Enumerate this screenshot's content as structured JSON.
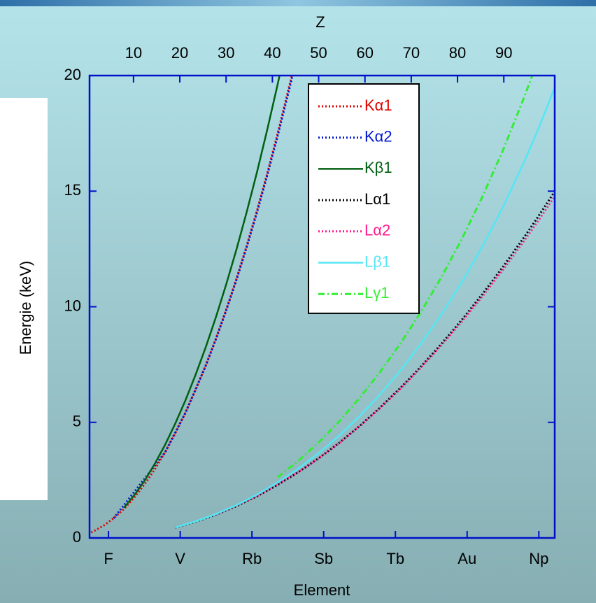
{
  "chart_data": {
    "type": "line",
    "x_label": "Element",
    "y_label": "Energie (keV)",
    "x2_label": "Z",
    "xlim": [
      5.3,
      96.1
    ],
    "xticks": [
      {
        "value": 9,
        "label": "F"
      },
      {
        "value": 23,
        "label": "V"
      },
      {
        "value": 37,
        "label": "Rb"
      },
      {
        "value": 51,
        "label": "Sb"
      },
      {
        "value": 65,
        "label": "Tb"
      },
      {
        "value": 79,
        "label": "Au"
      },
      {
        "value": 93,
        "label": "Np"
      }
    ],
    "x2lim": [
      0.5,
      101
    ],
    "x2ticks": [
      10,
      20,
      30,
      40,
      50,
      60,
      70,
      80,
      90
    ],
    "ylim": [
      0,
      20
    ],
    "yticks": [
      0,
      5,
      10,
      15,
      20
    ],
    "legend": "upper center",
    "series": [
      {
        "name": "Kα1",
        "color": "#e00000",
        "style": "dot",
        "x": [
          5,
          6,
          8,
          10,
          12,
          14,
          16,
          18,
          20,
          22,
          24,
          26,
          28,
          30,
          32,
          34,
          36,
          38,
          40,
          42,
          44,
          45
        ],
        "values": [
          0.183,
          0.277,
          0.525,
          0.849,
          1.254,
          1.74,
          2.308,
          2.957,
          3.692,
          4.511,
          5.415,
          6.404,
          7.478,
          8.639,
          9.886,
          11.222,
          12.649,
          14.165,
          15.775,
          17.479,
          19.279,
          20.216
        ]
      },
      {
        "name": "Kα2",
        "color": "#0018d0",
        "style": "dot",
        "x": [
          10,
          20,
          24,
          28,
          30,
          32,
          34,
          36,
          38,
          40,
          42,
          44,
          45
        ],
        "values": [
          0.849,
          3.688,
          5.405,
          7.461,
          8.616,
          9.855,
          11.181,
          12.598,
          14.098,
          15.691,
          17.374,
          19.15,
          20.074
        ]
      },
      {
        "name": "Kβ1",
        "color": "#006010",
        "style": "solid",
        "x": [
          12,
          14,
          16,
          18,
          20,
          22,
          24,
          26,
          28,
          30,
          32,
          34,
          36,
          38,
          40,
          42,
          43
        ],
        "values": [
          1.302,
          1.836,
          2.464,
          3.191,
          4.013,
          4.932,
          5.947,
          7.058,
          8.265,
          9.572,
          10.982,
          12.496,
          14.112,
          15.836,
          17.668,
          19.608,
          20.619
        ]
      },
      {
        "name": "Lα1",
        "color": "#000000",
        "style": "dot",
        "x": [
          22,
          26,
          30,
          34,
          38,
          42,
          46,
          50,
          54,
          58,
          62,
          66,
          70,
          74,
          78,
          82,
          86,
          90,
          92,
          94,
          96
        ],
        "values": [
          0.452,
          0.705,
          1.012,
          1.379,
          1.806,
          2.293,
          2.839,
          3.444,
          4.11,
          4.84,
          5.636,
          6.495,
          7.416,
          8.398,
          9.442,
          10.551,
          11.727,
          12.968,
          13.615,
          14.279,
          14.961
        ]
      },
      {
        "name": "Lα2",
        "color": "#ff1a8c",
        "style": "dot",
        "x": [
          30,
          38,
          46,
          50,
          54,
          58,
          62,
          66,
          70,
          74,
          78,
          82,
          86,
          90,
          92,
          94,
          96
        ],
        "values": [
          1.012,
          1.806,
          2.833,
          3.435,
          4.097,
          4.823,
          5.609,
          6.457,
          7.367,
          8.335,
          9.362,
          10.45,
          11.595,
          12.809,
          13.438,
          14.082,
          14.745
        ]
      },
      {
        "name": "Lβ1",
        "color": "#55e6f5",
        "style": "solid",
        "x": [
          22,
          26,
          30,
          34,
          38,
          42,
          46,
          50,
          54,
          58,
          62,
          66,
          70,
          74,
          78,
          82,
          86,
          90,
          92,
          94,
          96
        ],
        "values": [
          0.458,
          0.718,
          1.035,
          1.419,
          1.872,
          2.395,
          2.99,
          3.663,
          4.422,
          5.262,
          6.205,
          7.248,
          8.402,
          9.672,
          11.071,
          12.614,
          14.316,
          16.202,
          17.22,
          18.296,
          19.427
        ]
      },
      {
        "name": "Lγ1",
        "color": "#33ee33",
        "style": "dashdot",
        "x": [
          42,
          46,
          50,
          54,
          58,
          62,
          66,
          70,
          74,
          78,
          82,
          86,
          90,
          92
        ],
        "values": [
          2.623,
          3.328,
          4.131,
          5.036,
          6.052,
          7.18,
          8.418,
          9.78,
          11.286,
          12.942,
          14.764,
          16.77,
          18.982,
          20.167
        ]
      }
    ]
  }
}
